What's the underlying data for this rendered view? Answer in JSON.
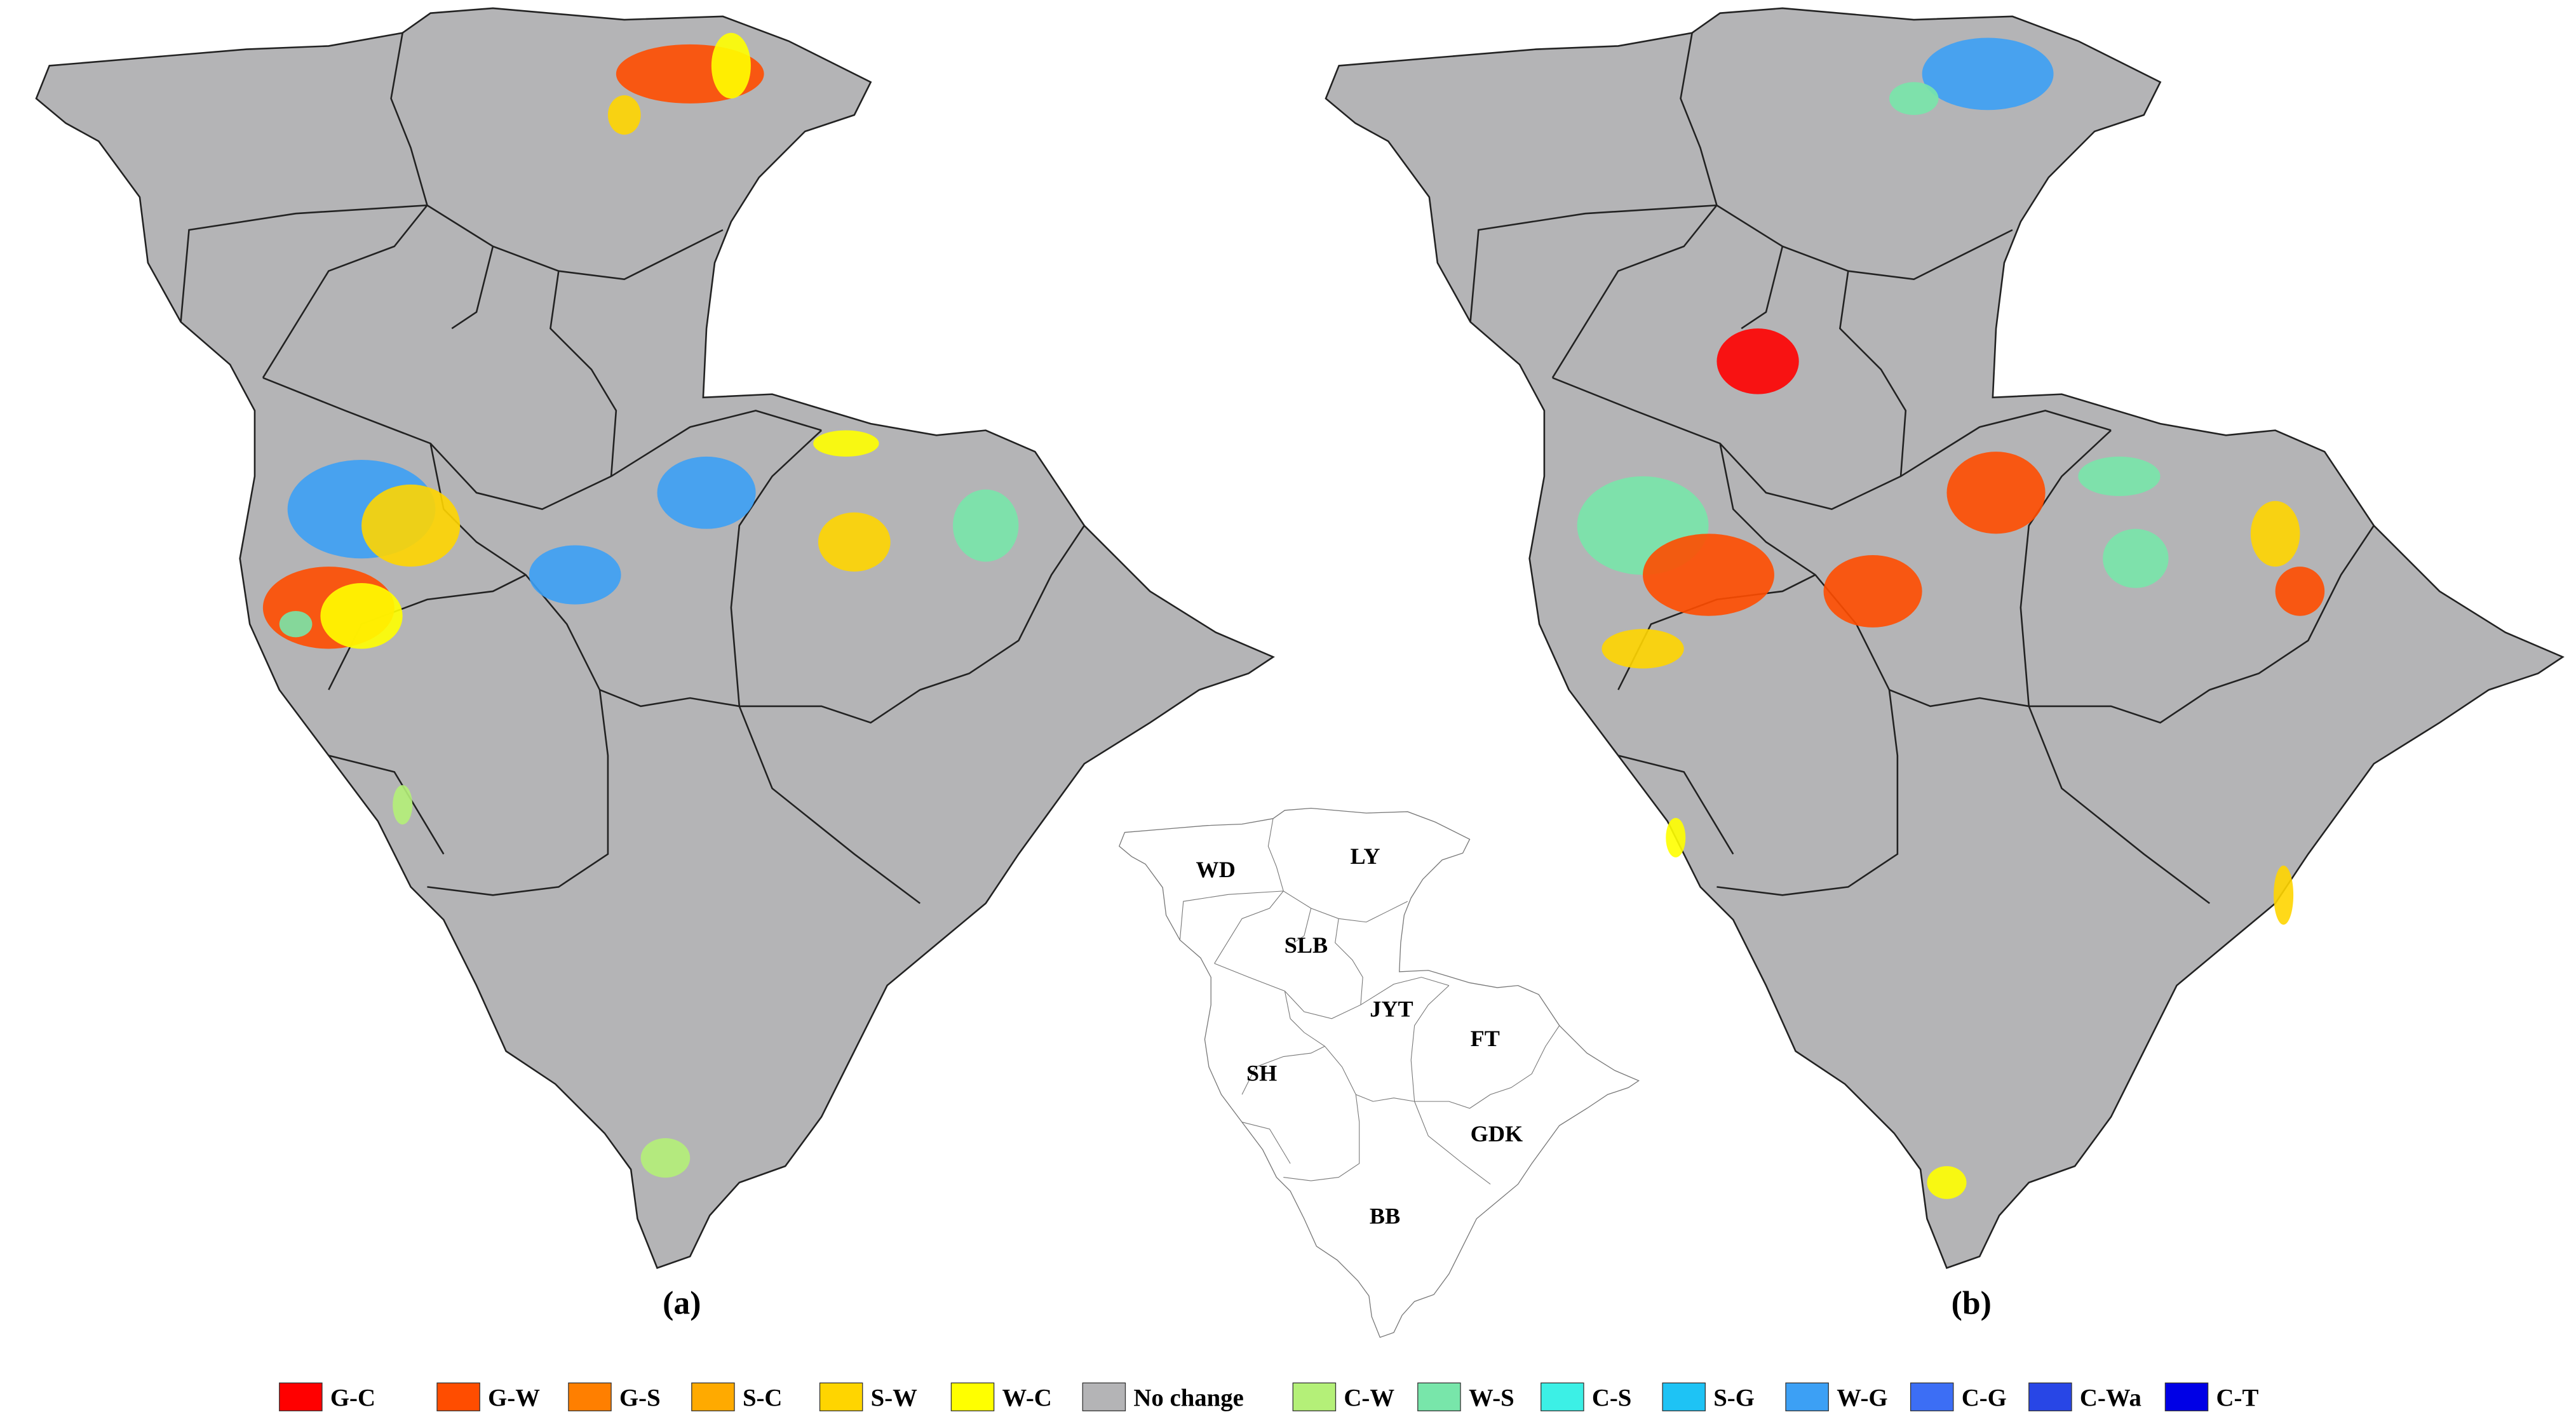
{
  "panels": [
    {
      "label": "(a)"
    },
    {
      "label": "(b)"
    }
  ],
  "regions": [
    {
      "label": "WD"
    },
    {
      "label": "LY"
    },
    {
      "label": "SLB"
    },
    {
      "label": "JYT"
    },
    {
      "label": "FT"
    },
    {
      "label": "SH"
    },
    {
      "label": "GDK"
    },
    {
      "label": "BB"
    }
  ],
  "legend": [
    {
      "name": "G-C",
      "color": "#ff0000"
    },
    {
      "name": "G-W",
      "color": "#ff4d00"
    },
    {
      "name": "G-S",
      "color": "#ff7f00"
    },
    {
      "name": "S-C",
      "color": "#ffaa00"
    },
    {
      "name": "S-W",
      "color": "#ffd500"
    },
    {
      "name": "W-C",
      "color": "#ffff00"
    },
    {
      "name": "No change",
      "color": "#b4b4b6"
    },
    {
      "name": "C-W",
      "color": "#b4f078"
    },
    {
      "name": "W-S",
      "color": "#78e6aa"
    },
    {
      "name": "C-S",
      "color": "#3cf0e6"
    },
    {
      "name": "S-G",
      "color": "#1ec3f5"
    },
    {
      "name": "W-G",
      "color": "#3ca0f5"
    },
    {
      "name": "C-G",
      "color": "#3c6ef5"
    },
    {
      "name": "C-Wa",
      "color": "#2846e6"
    },
    {
      "name": "C-T",
      "color": "#0000e6"
    }
  ]
}
